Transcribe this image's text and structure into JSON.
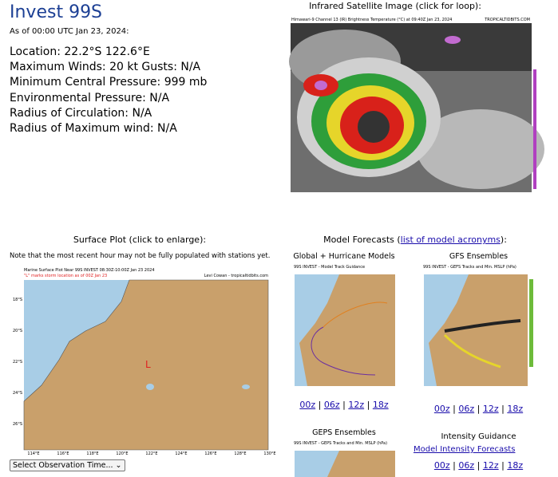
{
  "header": {
    "title": "Invest 99S",
    "as_of": "As of 00:00 UTC Jan 23, 2024:"
  },
  "details": [
    "Location: 22.2°S 122.6°E",
    "Maximum Winds: 20 kt  Gusts: N/A",
    "Minimum Central Pressure: 999 mb",
    "Environmental Pressure: N/A",
    "Radius of Circulation: N/A",
    "Radius of Maximum wind: N/A"
  ],
  "satellite": {
    "heading": "Infrared Satellite Image (click for loop):",
    "caption": "Himawari-9 Channel 13 (IR) Brightness Temperature (°C) at 09:40Z Jan 23, 2024",
    "credit": "TROPICALTIDBITS.COM"
  },
  "surface": {
    "heading": "Surface Plot (click to enlarge):",
    "note": "Note that the most recent hour may not be fully populated with stations yet.",
    "map_title": "Marine Surface Plot Near 99S INVEST 08:30Z-10:00Z Jan 23 2024",
    "map_subtitle": "\"L\" marks storm location as of 00Z Jan 23",
    "credit": "Levi Cowan - tropicaltidbits.com",
    "marker": "L",
    "lat_labels": [
      "18°S",
      "20°S",
      "22°S",
      "24°S",
      "26°S"
    ],
    "lon_labels": [
      "114°E",
      "116°E",
      "118°E",
      "120°E",
      "122°E",
      "124°E",
      "126°E",
      "128°E",
      "130°E"
    ],
    "select": "Select Observation Time..."
  },
  "models": {
    "heading": "Model Forecasts (",
    "heading_link": "list of model acronyms",
    "heading_end": "):",
    "separator": "|",
    "panels": [
      {
        "title": "Global + Hurricane Models",
        "image_title": "99S INVEST - Model Track Guidance",
        "links": [
          "00z",
          "06z",
          "12z",
          "18z"
        ]
      },
      {
        "title": "GFS Ensembles",
        "image_title": "99S INVEST - GEFS Tracks and Min. MSLP (hPa)",
        "links": [
          "00z",
          "06z",
          "12z",
          "18z"
        ]
      },
      {
        "title": "GEPS Ensembles",
        "image_title": "99S INVEST - GEPS Tracks and Min. MSLP (hPa)"
      },
      {
        "title": "Intensity Guidance",
        "link": "Model Intensity Forecasts",
        "links": [
          "00z",
          "06z",
          "12z",
          "18z"
        ]
      }
    ]
  }
}
